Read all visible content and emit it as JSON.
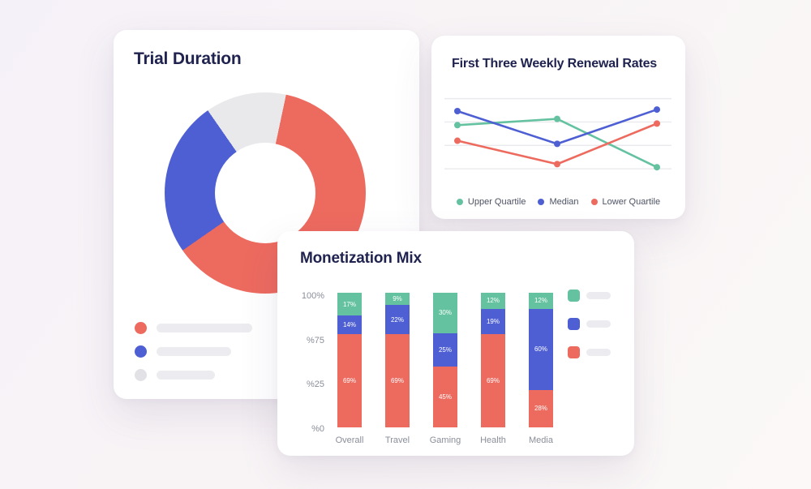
{
  "chart_data": [
    {
      "id": "trial-duration-donut",
      "type": "pie",
      "title": "Trial Duration",
      "donut": true,
      "start_angle_deg": 12,
      "slices": [
        {
          "name": "slice-primary",
          "value": 62,
          "color": "#ED6A5F"
        },
        {
          "name": "slice-secondary",
          "value": 25,
          "color": "#4E5FD3"
        },
        {
          "name": "slice-tertiary",
          "value": 13,
          "color": "#E9E9EC"
        }
      ],
      "legend_placeholders": [
        {
          "color": "#ED6A5F"
        },
        {
          "color": "#4E5FD3"
        },
        {
          "color": "#E2E2E6"
        }
      ]
    },
    {
      "id": "renewal-rates-line",
      "type": "line",
      "title": "First Three Weekly Renewal Rates",
      "grid": true,
      "gridline_values": [
        85,
        70,
        55,
        40
      ],
      "ylim": [
        38,
        90
      ],
      "legend_position": "bottom",
      "series": [
        {
          "name": "Upper Quartile",
          "color": "#64C2A0",
          "values": [
            68,
            72,
            41
          ]
        },
        {
          "name": "Median",
          "color": "#4E5FD3",
          "values": [
            77,
            56,
            78
          ]
        },
        {
          "name": "Lower Quartile",
          "color": "#ED6A5F",
          "values": [
            58,
            43,
            69
          ]
        }
      ]
    },
    {
      "id": "monetization-mix-bars",
      "type": "bar",
      "stacked": true,
      "percent": true,
      "title": "Monetization Mix",
      "categories": [
        "Overall",
        "Travel",
        "Gaming",
        "Health",
        "Media"
      ],
      "y_tick_labels": [
        "100%",
        "%75",
        "%25",
        "%0"
      ],
      "ylim": [
        0,
        100
      ],
      "series": [
        {
          "name": "segment-bottom",
          "color": "#ED6A5F",
          "values": [
            69,
            69,
            45,
            69,
            28
          ]
        },
        {
          "name": "segment-middle",
          "color": "#4E5FD3",
          "values": [
            14,
            22,
            25,
            19,
            60
          ]
        },
        {
          "name": "segment-top",
          "color": "#64C2A0",
          "values": [
            17,
            9,
            30,
            12,
            12
          ]
        }
      ],
      "legend_placeholders": [
        {
          "color": "#64C2A0"
        },
        {
          "color": "#4E5FD3"
        },
        {
          "color": "#ED6A5F"
        }
      ]
    }
  ],
  "colors": {
    "accent_red": "#ED6A5F",
    "accent_blue": "#4E5FD3",
    "accent_green": "#64C2A0",
    "neutral_gray": "#E9E9EC",
    "title_navy": "#20234F"
  }
}
